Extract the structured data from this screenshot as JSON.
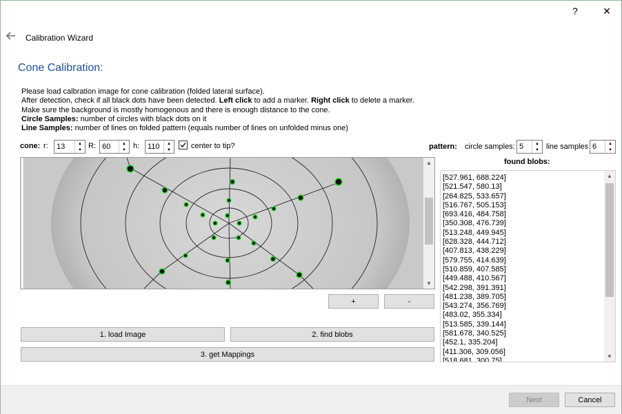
{
  "window": {
    "help_label": "?",
    "close_label": "✕",
    "back_icon": "back-arrow-icon",
    "title": "Calibration Wizard"
  },
  "page": {
    "heading": "Cone Calibration:",
    "heading_color": "#1f4e99"
  },
  "description": {
    "line1": "Please load calbration image for cone calibration (folded lateral surface).",
    "line2_a": "After detection, check if all black dots have been detected. ",
    "line2_b": "Left click",
    "line2_c": " to add a marker. ",
    "line2_d": "Right click",
    "line2_e": " to delete a marker.",
    "line3": "Make sure the background is mostly homogenous and there is enough distance to the cone.",
    "line4_label": "Circle Samples:",
    "line4_text": " number of circles with black dots on it",
    "line5_label": "Line Samples:",
    "line5_text": " number of lines on folded pattern (equals number of lines on unfolded minus one)"
  },
  "cone": {
    "label": "cone:",
    "r_label": "r:",
    "r_value": "13",
    "R_label": "R:",
    "R_value": "60",
    "h_label": "h:",
    "h_value": "110",
    "center_label": "center to tip?",
    "center_checked": true
  },
  "pattern": {
    "label": "pattern:",
    "circle_label": "circle samples:",
    "circle_value": "5",
    "line_label": "line samples",
    "line_value": "6"
  },
  "zoom": {
    "plus": "+",
    "minus": "-"
  },
  "actions": {
    "load": "1. load Image",
    "find": "2. find blobs",
    "mappings": "3. get Mappings"
  },
  "blobs": {
    "title": "found blobs:",
    "items": [
      "[527.961, 688.224]",
      "[521.547, 580.13]",
      "[264.825, 533.657]",
      "[516.767, 505.153]",
      "[693.416, 484.758]",
      "[350.308, 476.739]",
      "[513.248, 449.945]",
      "[628.328, 444.712]",
      "[407.813, 438.229]",
      "[579.755, 414.639]",
      "[510.859, 407.585]",
      "[449.488, 410.567]",
      "[542.298, 391.391]",
      "[481.238, 389.705]",
      "[543.274, 356.769]",
      "[483.02, 355.334]",
      "[513.585, 339.144]",
      "[581.678, 340.525]",
      "[452.1, 335.204]",
      "[411.306, 309.056]",
      "[518.681, 300.75]"
    ]
  },
  "footer": {
    "next": "Next",
    "cancel": "Cancel"
  }
}
